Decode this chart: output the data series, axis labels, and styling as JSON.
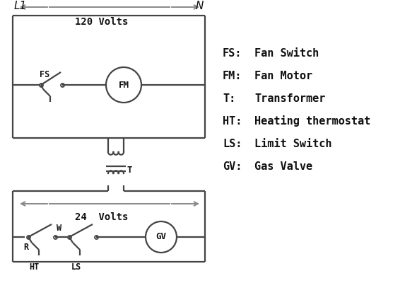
{
  "bg_color": "#ffffff",
  "line_color": "#444444",
  "arrow_color": "#888888",
  "text_color": "#111111",
  "legend_items": [
    [
      "FS:",
      "Fan Switch"
    ],
    [
      "FM:",
      "Fan Motor"
    ],
    [
      "T:",
      "Transformer"
    ],
    [
      "HT:",
      "Heating thermostat"
    ],
    [
      "LS:",
      "Limit Switch"
    ],
    [
      "GV:",
      "Gas Valve"
    ]
  ],
  "L1_label": "L1",
  "N_label": "N",
  "v120_label": "120 Volts",
  "v24_label": "24  Volts",
  "FS_label": "FS",
  "FM_label": "FM",
  "T_label": "T",
  "R_label": "R",
  "W_label": "W",
  "HT_label": "HT",
  "LS_label": "LS",
  "GV_label": "GV"
}
